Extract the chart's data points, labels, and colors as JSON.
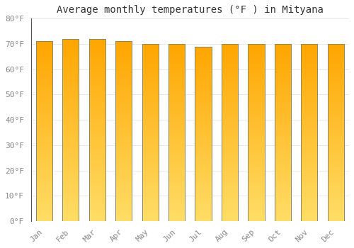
{
  "title": "Average monthly temperatures (°F ) in Mityana",
  "months": [
    "Jan",
    "Feb",
    "Mar",
    "Apr",
    "May",
    "Jun",
    "Jul",
    "Aug",
    "Sep",
    "Oct",
    "Nov",
    "Dec"
  ],
  "values": [
    71,
    72,
    72,
    71,
    70,
    70,
    69,
    70,
    70,
    70,
    70,
    70
  ],
  "bar_color_top": "#FFA500",
  "bar_color_bottom": "#FFDD66",
  "bar_border_color": "#888866",
  "ylim": [
    0,
    80
  ],
  "yticks": [
    0,
    10,
    20,
    30,
    40,
    50,
    60,
    70,
    80
  ],
  "ytick_labels": [
    "0°F",
    "10°F",
    "20°F",
    "30°F",
    "40°F",
    "50°F",
    "60°F",
    "70°F",
    "80°F"
  ],
  "background_color": "#FFFFFF",
  "plot_bg_color": "#FFFFFF",
  "grid_color": "#E8E8E8",
  "title_fontsize": 10,
  "tick_fontsize": 8,
  "bar_width": 0.62
}
